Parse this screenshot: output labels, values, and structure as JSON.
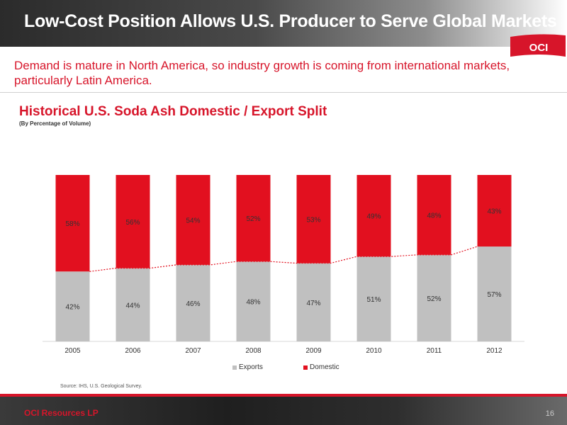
{
  "header": {
    "title": "Low-Cost Position Allows U.S. Producer to Serve Global Markets"
  },
  "logo": {
    "text": "OCI"
  },
  "subtitle": "Demand is mature in North America, so industry growth is coming from international markets, particularly Latin America.",
  "chart_data": {
    "type": "bar",
    "stacked": true,
    "title": "Historical U.S. Soda Ash Domestic / Export Split",
    "subtitle": "(By Percentage of Volume)",
    "categories": [
      "2005",
      "2006",
      "2007",
      "2008",
      "2009",
      "2010",
      "2011",
      "2012"
    ],
    "series": [
      {
        "name": "Exports",
        "values": [
          42,
          44,
          46,
          48,
          47,
          51,
          52,
          57
        ],
        "labels": [
          "42%",
          "44%",
          "46%",
          "48%",
          "47%",
          "51%",
          "52%",
          "57%"
        ],
        "color": "#c0c0c0"
      },
      {
        "name": "Domestic",
        "values": [
          58,
          56,
          54,
          52,
          53,
          49,
          48,
          43
        ],
        "labels": [
          "58%",
          "56%",
          "54%",
          "52%",
          "53%",
          "49%",
          "48%",
          "43%"
        ],
        "color": "#e2101f"
      }
    ],
    "trend_line": {
      "series": "Exports",
      "style": "dotted",
      "color": "#e2101f"
    },
    "ylim": [
      0,
      100
    ],
    "legend": "bottom",
    "grid": false
  },
  "source": "Source: IHS, U.S. Geological Survey.",
  "footer": {
    "company": "OCI Resources LP",
    "page": "16"
  }
}
